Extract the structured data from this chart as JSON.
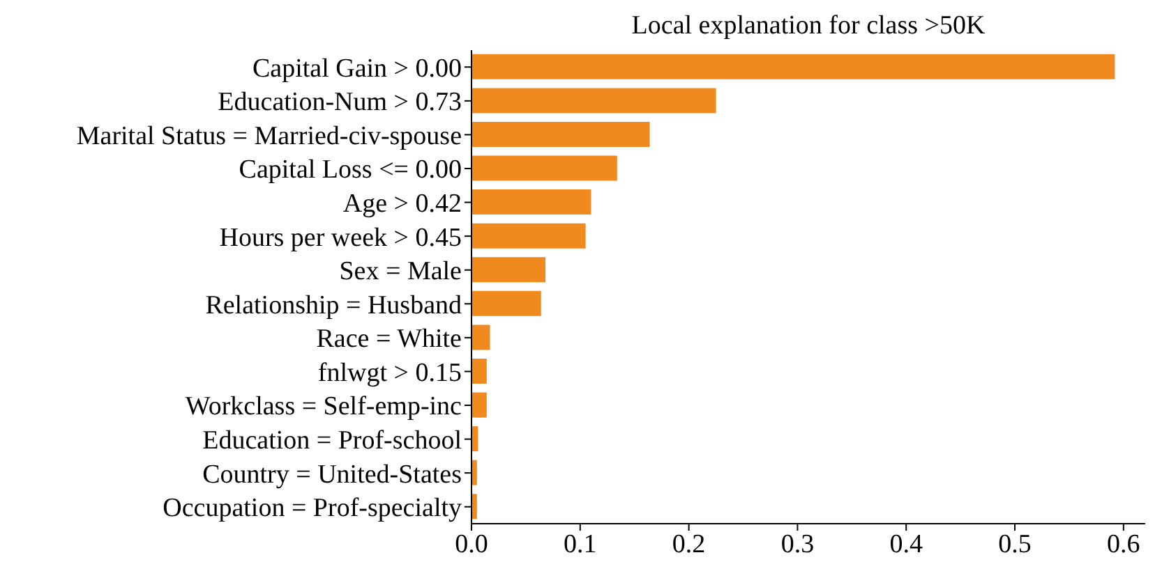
{
  "chart_data": {
    "type": "bar",
    "orientation": "horizontal",
    "title": "Local explanation for class >50K",
    "categories": [
      "Capital Gain > 0.00",
      "Education-Num > 0.73",
      "Marital Status = Married-civ-spouse",
      "Capital Loss <= 0.00",
      "Age > 0.42",
      "Hours per week > 0.45",
      "Sex = Male",
      "Relationship = Husband",
      "Race = White",
      "fnlwgt > 0.15",
      "Workclass = Self-emp-inc",
      "Education = Prof-school",
      "Country = United-States",
      "Occupation = Prof-specialty"
    ],
    "values": [
      0.592,
      0.225,
      0.164,
      0.134,
      0.11,
      0.105,
      0.068,
      0.064,
      0.017,
      0.014,
      0.014,
      0.006,
      0.005,
      0.005
    ],
    "color": "#f0891e",
    "xlim": [
      0,
      0.62
    ],
    "xticks": [
      {
        "value": 0,
        "label": "0.0"
      },
      0.1,
      0.2,
      0.3,
      0.4,
      0.5,
      0.6
    ],
    "grid": false
  }
}
